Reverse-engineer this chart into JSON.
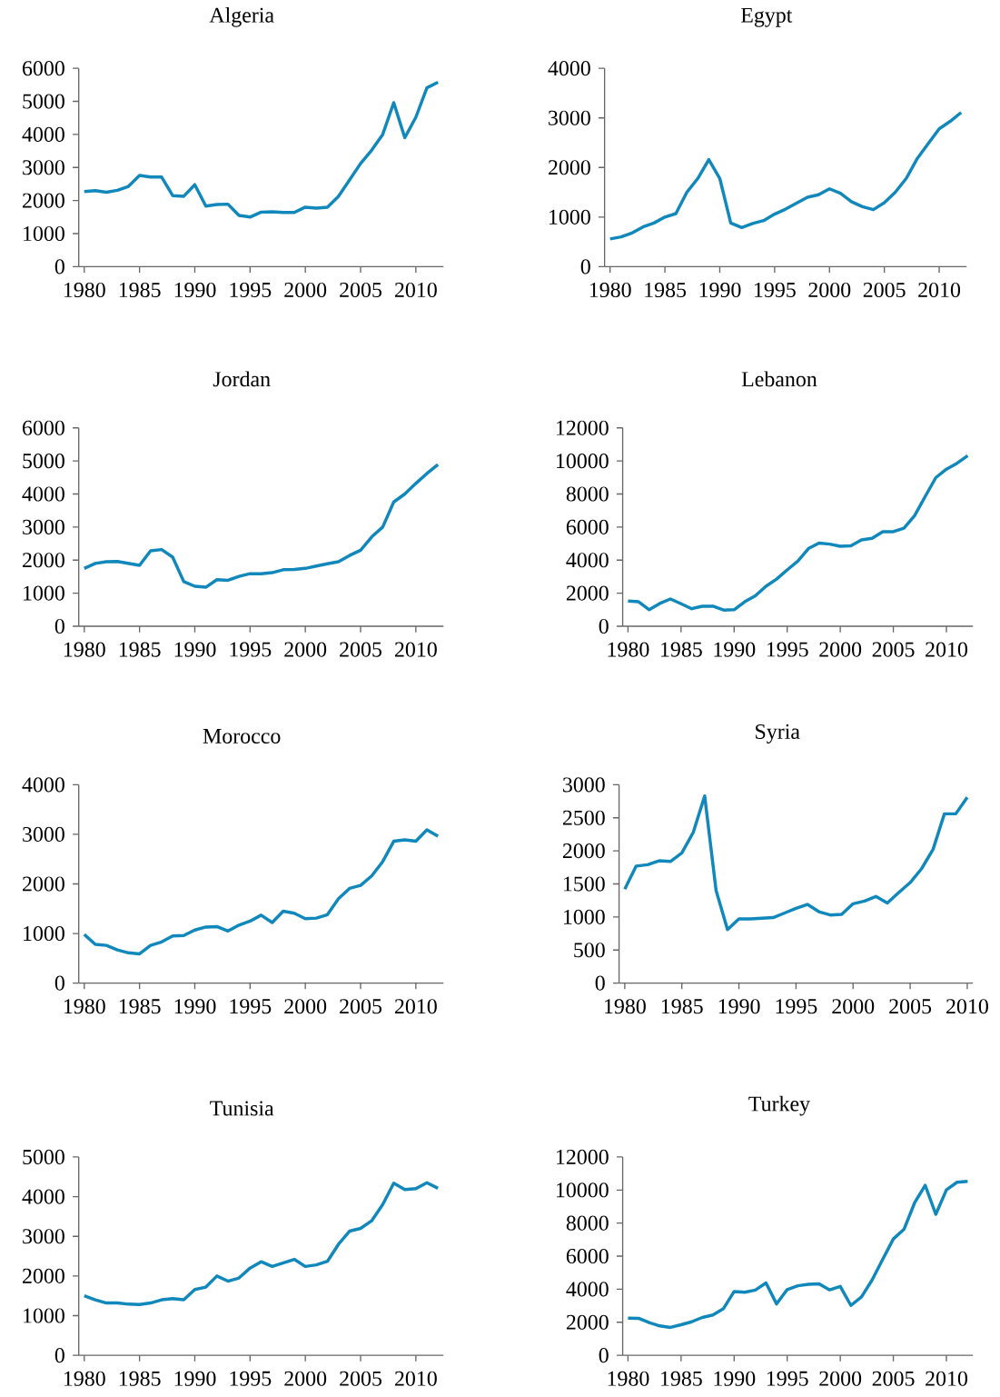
{
  "chart_data": [
    {
      "type": "line",
      "title": "Algeria",
      "color": "#1188bb",
      "xlim": [
        1979.5,
        2012.5
      ],
      "xticks": [
        1980,
        1985,
        1990,
        1995,
        2000,
        2005,
        2010
      ],
      "ylim": [
        0,
        6000
      ],
      "yticks": [
        0,
        1000,
        2000,
        3000,
        4000,
        5000,
        6000
      ],
      "marker": "none",
      "x": [
        1980,
        1981,
        1982,
        1983,
        1984,
        1985,
        1986,
        1987,
        1988,
        1989,
        1990,
        1991,
        1992,
        1993,
        1994,
        1995,
        1996,
        1997,
        1998,
        1999,
        2000,
        2001,
        2002,
        2003,
        2004,
        2005,
        2006,
        2007,
        2008,
        2009,
        2010,
        2011,
        2012
      ],
      "values": [
        2270,
        2300,
        2250,
        2310,
        2430,
        2760,
        2710,
        2710,
        2150,
        2130,
        2480,
        1830,
        1880,
        1890,
        1550,
        1500,
        1650,
        1660,
        1640,
        1640,
        1800,
        1770,
        1800,
        2130,
        2620,
        3120,
        3520,
        4000,
        4960,
        3900,
        4520,
        5410,
        5580
      ]
    },
    {
      "type": "line",
      "title": "Egypt",
      "color": "#1188bb",
      "xlim": [
        1979.5,
        2012.5
      ],
      "xticks": [
        1980,
        1985,
        1990,
        1995,
        2000,
        2005,
        2010
      ],
      "ylim": [
        0,
        4000
      ],
      "yticks": [
        0,
        1000,
        2000,
        3000,
        4000
      ],
      "marker": "none",
      "x": [
        1980,
        1981,
        1982,
        1983,
        1984,
        1985,
        1986,
        1987,
        1988,
        1989,
        1990,
        1991,
        1992,
        1993,
        1994,
        1995,
        1996,
        1997,
        1998,
        1999,
        2000,
        2001,
        2002,
        2003,
        2004,
        2005,
        2006,
        2007,
        2008,
        2009,
        2010,
        2011,
        2012
      ],
      "values": [
        560,
        600,
        680,
        800,
        880,
        1000,
        1070,
        1500,
        1780,
        2160,
        1780,
        880,
        790,
        870,
        930,
        1060,
        1160,
        1280,
        1400,
        1450,
        1570,
        1480,
        1310,
        1210,
        1150,
        1290,
        1500,
        1780,
        2180,
        2480,
        2780,
        2930,
        3110
      ]
    },
    {
      "type": "line",
      "title": "Jordan",
      "color": "#1188bb",
      "xlim": [
        1979.5,
        2012.5
      ],
      "xticks": [
        1980,
        1985,
        1990,
        1995,
        2000,
        2005,
        2010
      ],
      "ylim": [
        0,
        6000
      ],
      "yticks": [
        0,
        1000,
        2000,
        3000,
        4000,
        5000,
        6000
      ],
      "marker": "none",
      "x": [
        1980,
        1981,
        1982,
        1983,
        1984,
        1985,
        1986,
        1987,
        1988,
        1989,
        1990,
        1991,
        1992,
        1993,
        1994,
        1995,
        1996,
        1997,
        1998,
        1999,
        2000,
        2001,
        2002,
        2003,
        2004,
        2005,
        2006,
        2007,
        2008,
        2009,
        2010,
        2011,
        2012
      ],
      "values": [
        1750,
        1900,
        1950,
        1960,
        1900,
        1840,
        2280,
        2320,
        2090,
        1350,
        1210,
        1180,
        1410,
        1390,
        1510,
        1590,
        1590,
        1620,
        1710,
        1720,
        1750,
        1820,
        1890,
        1950,
        2140,
        2300,
        2700,
        3000,
        3760,
        4000,
        4320,
        4620,
        4890
      ]
    },
    {
      "type": "line",
      "title": "Lebanon",
      "color": "#1188bb",
      "xlim": [
        1979.5,
        2012.5
      ],
      "xticks": [
        1980,
        1985,
        1990,
        1995,
        2000,
        2005,
        2010
      ],
      "ylim": [
        0,
        12000
      ],
      "yticks": [
        0,
        2000,
        4000,
        6000,
        8000,
        10000,
        12000
      ],
      "marker": "none",
      "x": [
        1980,
        1981,
        1982,
        1983,
        1984,
        1985,
        1986,
        1987,
        1988,
        1989,
        1990,
        1991,
        1992,
        1993,
        1994,
        1995,
        1996,
        1997,
        1998,
        1999,
        2000,
        2001,
        2002,
        2003,
        2004,
        2005,
        2006,
        2007,
        2008,
        2009,
        2010,
        2011,
        2012
      ],
      "values": [
        1530,
        1480,
        1000,
        1380,
        1650,
        1360,
        1060,
        1210,
        1210,
        980,
        1000,
        1480,
        1840,
        2420,
        2850,
        3410,
        3940,
        4700,
        5030,
        4970,
        4840,
        4870,
        5220,
        5320,
        5720,
        5720,
        5930,
        6690,
        7850,
        8990,
        9500,
        9860,
        10320
      ]
    },
    {
      "type": "line",
      "title": "Morocco",
      "color": "#1188bb",
      "xlim": [
        1979.5,
        2012.5
      ],
      "xticks": [
        1980,
        1985,
        1990,
        1995,
        2000,
        2005,
        2010
      ],
      "ylim": [
        0,
        4000
      ],
      "yticks": [
        0,
        1000,
        2000,
        3000,
        4000
      ],
      "marker": "none",
      "x": [
        1980,
        1981,
        1982,
        1983,
        1984,
        1985,
        1986,
        1987,
        1988,
        1989,
        1990,
        1991,
        1992,
        1993,
        1994,
        1995,
        1996,
        1997,
        1998,
        1999,
        2000,
        2001,
        2002,
        2003,
        2004,
        2005,
        2006,
        2007,
        2008,
        2009,
        2010,
        2011,
        2012
      ],
      "values": [
        980,
        780,
        760,
        670,
        610,
        590,
        760,
        830,
        950,
        960,
        1070,
        1130,
        1140,
        1050,
        1170,
        1250,
        1370,
        1220,
        1450,
        1410,
        1300,
        1310,
        1380,
        1700,
        1910,
        1970,
        2160,
        2450,
        2860,
        2890,
        2860,
        3090,
        2960
      ]
    },
    {
      "type": "line",
      "title": "Syria",
      "color": "#1188bb",
      "xlim": [
        1979.5,
        2010.5
      ],
      "xticks": [
        1980,
        1985,
        1990,
        1995,
        2000,
        2005,
        2010
      ],
      "ylim": [
        0,
        3000
      ],
      "yticks": [
        0,
        500,
        1000,
        1500,
        2000,
        2500,
        3000
      ],
      "marker": "none",
      "x": [
        1980,
        1981,
        1982,
        1983,
        1984,
        1985,
        1986,
        1987,
        1988,
        1989,
        1990,
        1991,
        1992,
        1993,
        1994,
        1995,
        1996,
        1997,
        1998,
        1999,
        2000,
        2001,
        2002,
        2003,
        2004,
        2005,
        2006,
        2007,
        2008,
        2009,
        2010
      ],
      "values": [
        1420,
        1770,
        1790,
        1850,
        1840,
        1970,
        2280,
        2830,
        1400,
        810,
        970,
        970,
        980,
        990,
        1060,
        1130,
        1190,
        1080,
        1030,
        1040,
        1200,
        1240,
        1310,
        1210,
        1370,
        1520,
        1730,
        2020,
        2560,
        2560,
        2810
      ]
    },
    {
      "type": "line",
      "title": "Tunisia",
      "color": "#1188bb",
      "xlim": [
        1979.5,
        2012.5
      ],
      "xticks": [
        1980,
        1985,
        1990,
        1995,
        2000,
        2005,
        2010
      ],
      "ylim": [
        0,
        5000
      ],
      "yticks": [
        0,
        1000,
        2000,
        3000,
        4000,
        5000
      ],
      "marker": "none",
      "x": [
        1980,
        1981,
        1982,
        1983,
        1984,
        1985,
        1986,
        1987,
        1988,
        1989,
        1990,
        1991,
        1992,
        1993,
        1994,
        1995,
        1996,
        1997,
        1998,
        1999,
        2000,
        2001,
        2002,
        2003,
        2004,
        2005,
        2006,
        2007,
        2008,
        2009,
        2010,
        2011,
        2012
      ],
      "values": [
        1500,
        1400,
        1320,
        1320,
        1290,
        1280,
        1320,
        1400,
        1430,
        1400,
        1660,
        1720,
        2000,
        1870,
        1950,
        2200,
        2360,
        2240,
        2330,
        2420,
        2240,
        2280,
        2370,
        2800,
        3130,
        3200,
        3390,
        3800,
        4340,
        4180,
        4200,
        4350,
        4210
      ]
    },
    {
      "type": "line",
      "title": "Turkey",
      "color": "#1188bb",
      "xlim": [
        1979.5,
        2012.5
      ],
      "xticks": [
        1980,
        1985,
        1990,
        1995,
        2000,
        2005,
        2010
      ],
      "ylim": [
        0,
        12000
      ],
      "yticks": [
        0,
        2000,
        4000,
        6000,
        8000,
        10000,
        12000
      ],
      "marker": "none",
      "x": [
        1980,
        1981,
        1982,
        1983,
        1984,
        1985,
        1986,
        1987,
        1988,
        1989,
        1990,
        1991,
        1992,
        1993,
        1994,
        1995,
        1996,
        1997,
        1998,
        1999,
        2000,
        2001,
        2002,
        2003,
        2004,
        2005,
        2006,
        2007,
        2008,
        2009,
        2010,
        2011,
        2012
      ],
      "values": [
        2250,
        2240,
        1980,
        1780,
        1690,
        1850,
        2030,
        2290,
        2440,
        2830,
        3860,
        3820,
        3950,
        4380,
        3110,
        3980,
        4210,
        4300,
        4330,
        3960,
        4170,
        3020,
        3530,
        4560,
        5810,
        7040,
        7620,
        9220,
        10290,
        8530,
        10010,
        10470,
        10520
      ]
    }
  ]
}
